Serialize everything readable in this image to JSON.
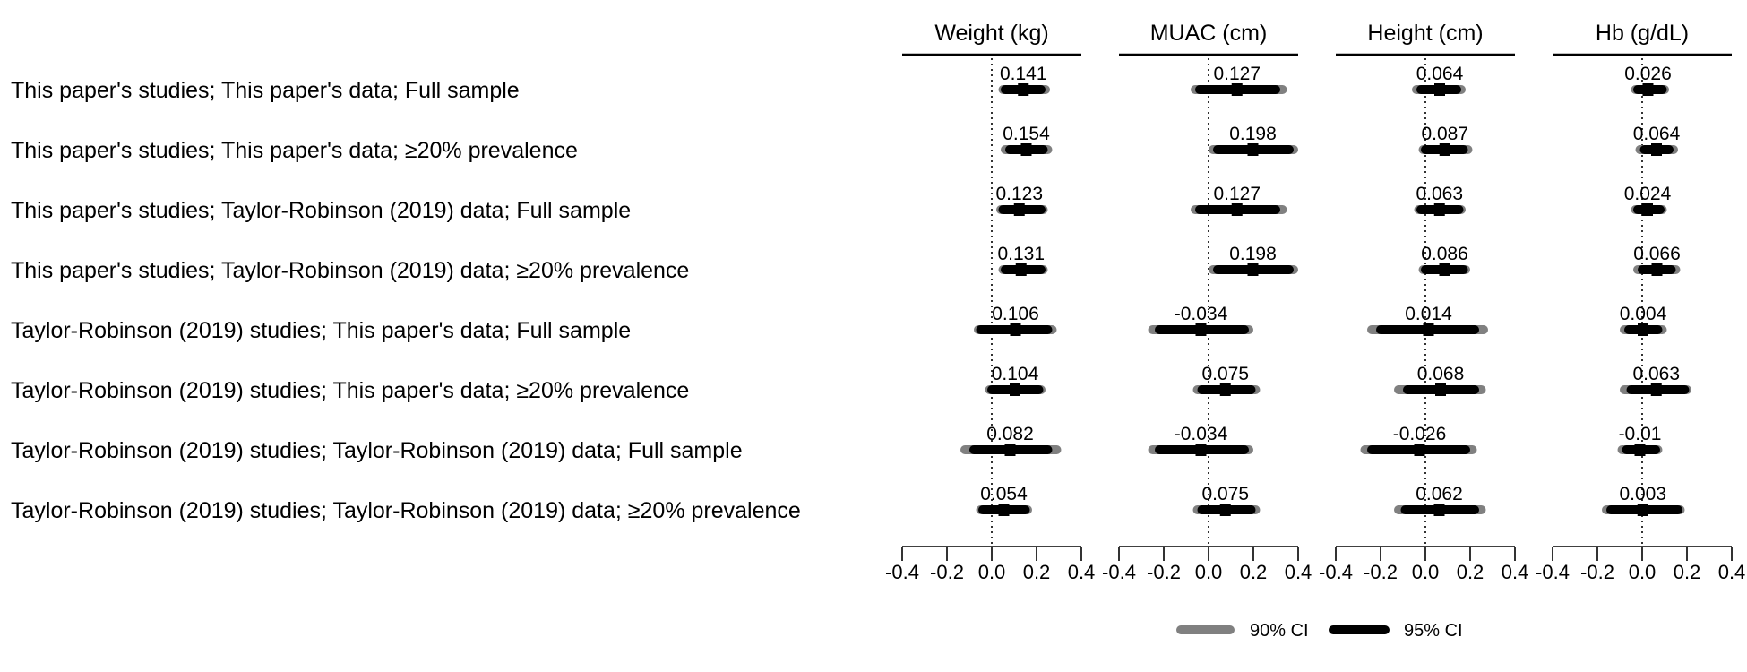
{
  "chart_data": {
    "type": "forest",
    "rows": [
      "This paper's studies; This paper's data; Full sample",
      "This paper's studies; This paper's data; ≥20% prevalence",
      "This paper's studies; Taylor-Robinson (2019) data; Full sample",
      "This paper's studies; Taylor-Robinson (2019) data; ≥20% prevalence",
      "Taylor-Robinson (2019) studies; This paper's data; Full sample",
      "Taylor-Robinson (2019) studies; This paper's data; ≥20% prevalence",
      "Taylor-Robinson (2019) studies; Taylor-Robinson (2019) data; Full sample",
      "Taylor-Robinson (2019) studies; Taylor-Robinson (2019) data; ≥20% prevalence"
    ],
    "xlim": [
      -0.4,
      0.4
    ],
    "ticks": [
      -0.4,
      -0.2,
      0.0,
      0.2,
      0.4
    ],
    "tick_labels": [
      "-0.4",
      "-0.2",
      "0.0",
      "0.2",
      "0.4"
    ],
    "reference_line": 0,
    "panels": [
      {
        "title": "Weight (kg)",
        "estimates": [
          0.141,
          0.154,
          0.123,
          0.131,
          0.106,
          0.104,
          0.082,
          0.054
        ],
        "labels": [
          "0.141",
          "0.154",
          "0.123",
          "0.131",
          "0.106",
          "0.104",
          "0.082",
          "0.054"
        ],
        "ci95": [
          [
            0.06,
            0.22
          ],
          [
            0.08,
            0.23
          ],
          [
            0.05,
            0.22
          ],
          [
            0.06,
            0.22
          ],
          [
            -0.05,
            0.25
          ],
          [
            0.0,
            0.21
          ],
          [
            -0.08,
            0.25
          ],
          [
            -0.04,
            0.15
          ]
        ],
        "ci90": [
          [
            0.05,
            0.24
          ],
          [
            0.06,
            0.25
          ],
          [
            0.04,
            0.23
          ],
          [
            0.05,
            0.23
          ],
          [
            -0.06,
            0.27
          ],
          [
            -0.01,
            0.22
          ],
          [
            -0.12,
            0.29
          ],
          [
            -0.05,
            0.16
          ]
        ]
      },
      {
        "title": "MUAC (cm)",
        "estimates": [
          0.127,
          0.198,
          0.127,
          0.198,
          -0.034,
          0.075,
          -0.034,
          0.075
        ],
        "labels": [
          "0.127",
          "0.198",
          "0.127",
          "0.198",
          "-0.034",
          "0.075",
          "-0.034",
          "0.075"
        ],
        "ci95": [
          [
            -0.04,
            0.3
          ],
          [
            0.04,
            0.36
          ],
          [
            -0.04,
            0.3
          ],
          [
            0.04,
            0.36
          ],
          [
            -0.22,
            0.16
          ],
          [
            -0.03,
            0.19
          ],
          [
            -0.22,
            0.16
          ],
          [
            -0.03,
            0.19
          ]
        ],
        "ci90": [
          [
            -0.06,
            0.33
          ],
          [
            0.02,
            0.38
          ],
          [
            -0.06,
            0.33
          ],
          [
            0.02,
            0.38
          ],
          [
            -0.25,
            0.18
          ],
          [
            -0.05,
            0.21
          ],
          [
            -0.25,
            0.18
          ],
          [
            -0.05,
            0.21
          ]
        ]
      },
      {
        "title": "Height (cm)",
        "estimates": [
          0.064,
          0.087,
          0.063,
          0.086,
          0.014,
          0.068,
          -0.026,
          0.062
        ],
        "labels": [
          "0.064",
          "0.087",
          "0.063",
          "0.086",
          "0.014",
          "0.068",
          "-0.026",
          "0.062"
        ],
        "ci95": [
          [
            -0.02,
            0.14
          ],
          [
            0.0,
            0.17
          ],
          [
            -0.02,
            0.15
          ],
          [
            0.0,
            0.17
          ],
          [
            -0.2,
            0.22
          ],
          [
            -0.08,
            0.22
          ],
          [
            -0.24,
            0.18
          ],
          [
            -0.09,
            0.22
          ]
        ],
        "ci90": [
          [
            -0.04,
            0.16
          ],
          [
            -0.01,
            0.19
          ],
          [
            -0.03,
            0.16
          ],
          [
            -0.01,
            0.18
          ],
          [
            -0.24,
            0.26
          ],
          [
            -0.12,
            0.25
          ],
          [
            -0.27,
            0.21
          ],
          [
            -0.12,
            0.25
          ]
        ]
      },
      {
        "title": "Hb (g/dL)",
        "estimates": [
          0.026,
          0.064,
          0.024,
          0.066,
          0.004,
          0.063,
          -0.01,
          0.003
        ],
        "labels": [
          "0.026",
          "0.064",
          "0.024",
          "0.066",
          "0.004",
          "0.063",
          "-0.01",
          "0.003"
        ],
        "ci95": [
          [
            -0.02,
            0.09
          ],
          [
            0.01,
            0.12
          ],
          [
            -0.02,
            0.08
          ],
          [
            0.0,
            0.13
          ],
          [
            -0.06,
            0.07
          ],
          [
            -0.05,
            0.19
          ],
          [
            -0.07,
            0.06
          ],
          [
            -0.14,
            0.16
          ]
        ],
        "ci90": [
          [
            -0.03,
            0.1
          ],
          [
            -0.01,
            0.14
          ],
          [
            -0.03,
            0.09
          ],
          [
            -0.02,
            0.15
          ],
          [
            -0.08,
            0.09
          ],
          [
            -0.08,
            0.2
          ],
          [
            -0.09,
            0.07
          ],
          [
            -0.16,
            0.17
          ]
        ]
      }
    ],
    "legend": {
      "placement": "bottom",
      "entries": [
        {
          "label": "90% CI",
          "color": "#808080"
        },
        {
          "label": "95% CI",
          "color": "#000000"
        }
      ]
    }
  },
  "colors": {
    "ci90": "#808080",
    "ci95": "#000000",
    "point": "#000000",
    "reference": "#000000"
  }
}
